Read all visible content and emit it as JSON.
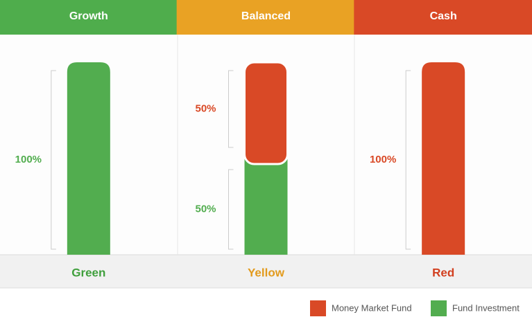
{
  "chart_data": {
    "type": "stacked_bar",
    "categories": [
      "Growth",
      "Balanced",
      "Cash"
    ],
    "category_colors": [
      "#4fad4c",
      "#e9a224",
      "#d94926"
    ],
    "sublabels": [
      "Green",
      "Yellow",
      "Red"
    ],
    "sublabel_colors": [
      "#3f9f3c",
      "#e29a1c",
      "#d23f1f"
    ],
    "series": [
      {
        "name": "Money Market Fund",
        "color": "#d94926",
        "values": [
          0,
          50,
          100
        ],
        "value_labels": [
          null,
          "50%",
          "100%"
        ]
      },
      {
        "name": "Fund Investment",
        "color": "#52ad4f",
        "values": [
          100,
          50,
          0
        ],
        "value_labels": [
          "100%",
          "50%",
          null
        ]
      }
    ]
  }
}
